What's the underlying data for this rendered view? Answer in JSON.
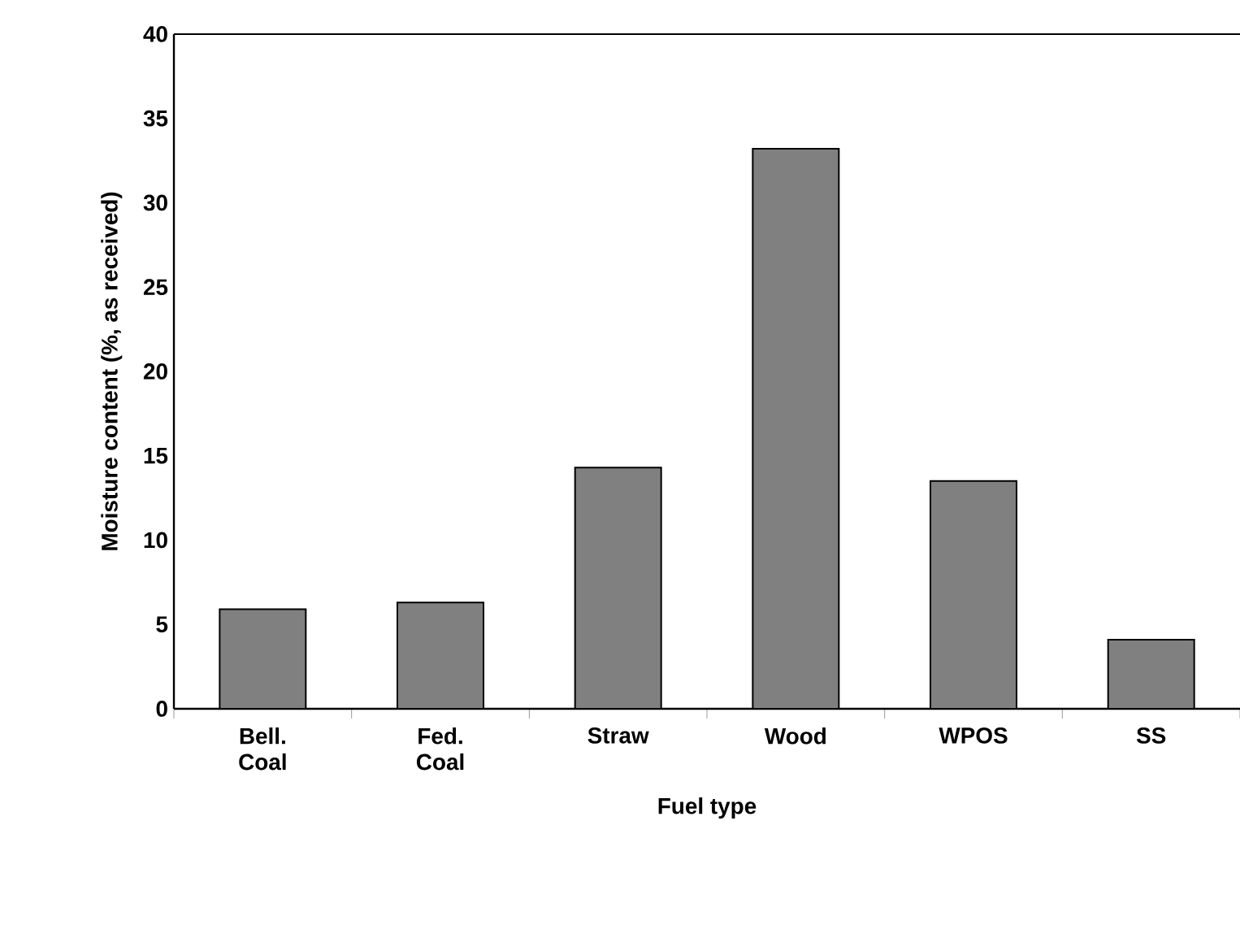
{
  "chart_data": {
    "type": "bar",
    "xlabel": "Fuel type",
    "ylabel": "Moisture content (%, as received)",
    "categories": [
      "Bell. Coal",
      "Fed. Coal",
      "Straw",
      "Wood",
      "WPOS",
      "SS"
    ],
    "values": [
      5.9,
      6.3,
      14.3,
      33.2,
      13.5,
      4.1
    ],
    "color": "#808080",
    "ylim": [
      0,
      40
    ],
    "yticks": [
      0,
      5,
      10,
      15,
      20,
      25,
      30,
      35,
      40
    ],
    "grid": false
  }
}
